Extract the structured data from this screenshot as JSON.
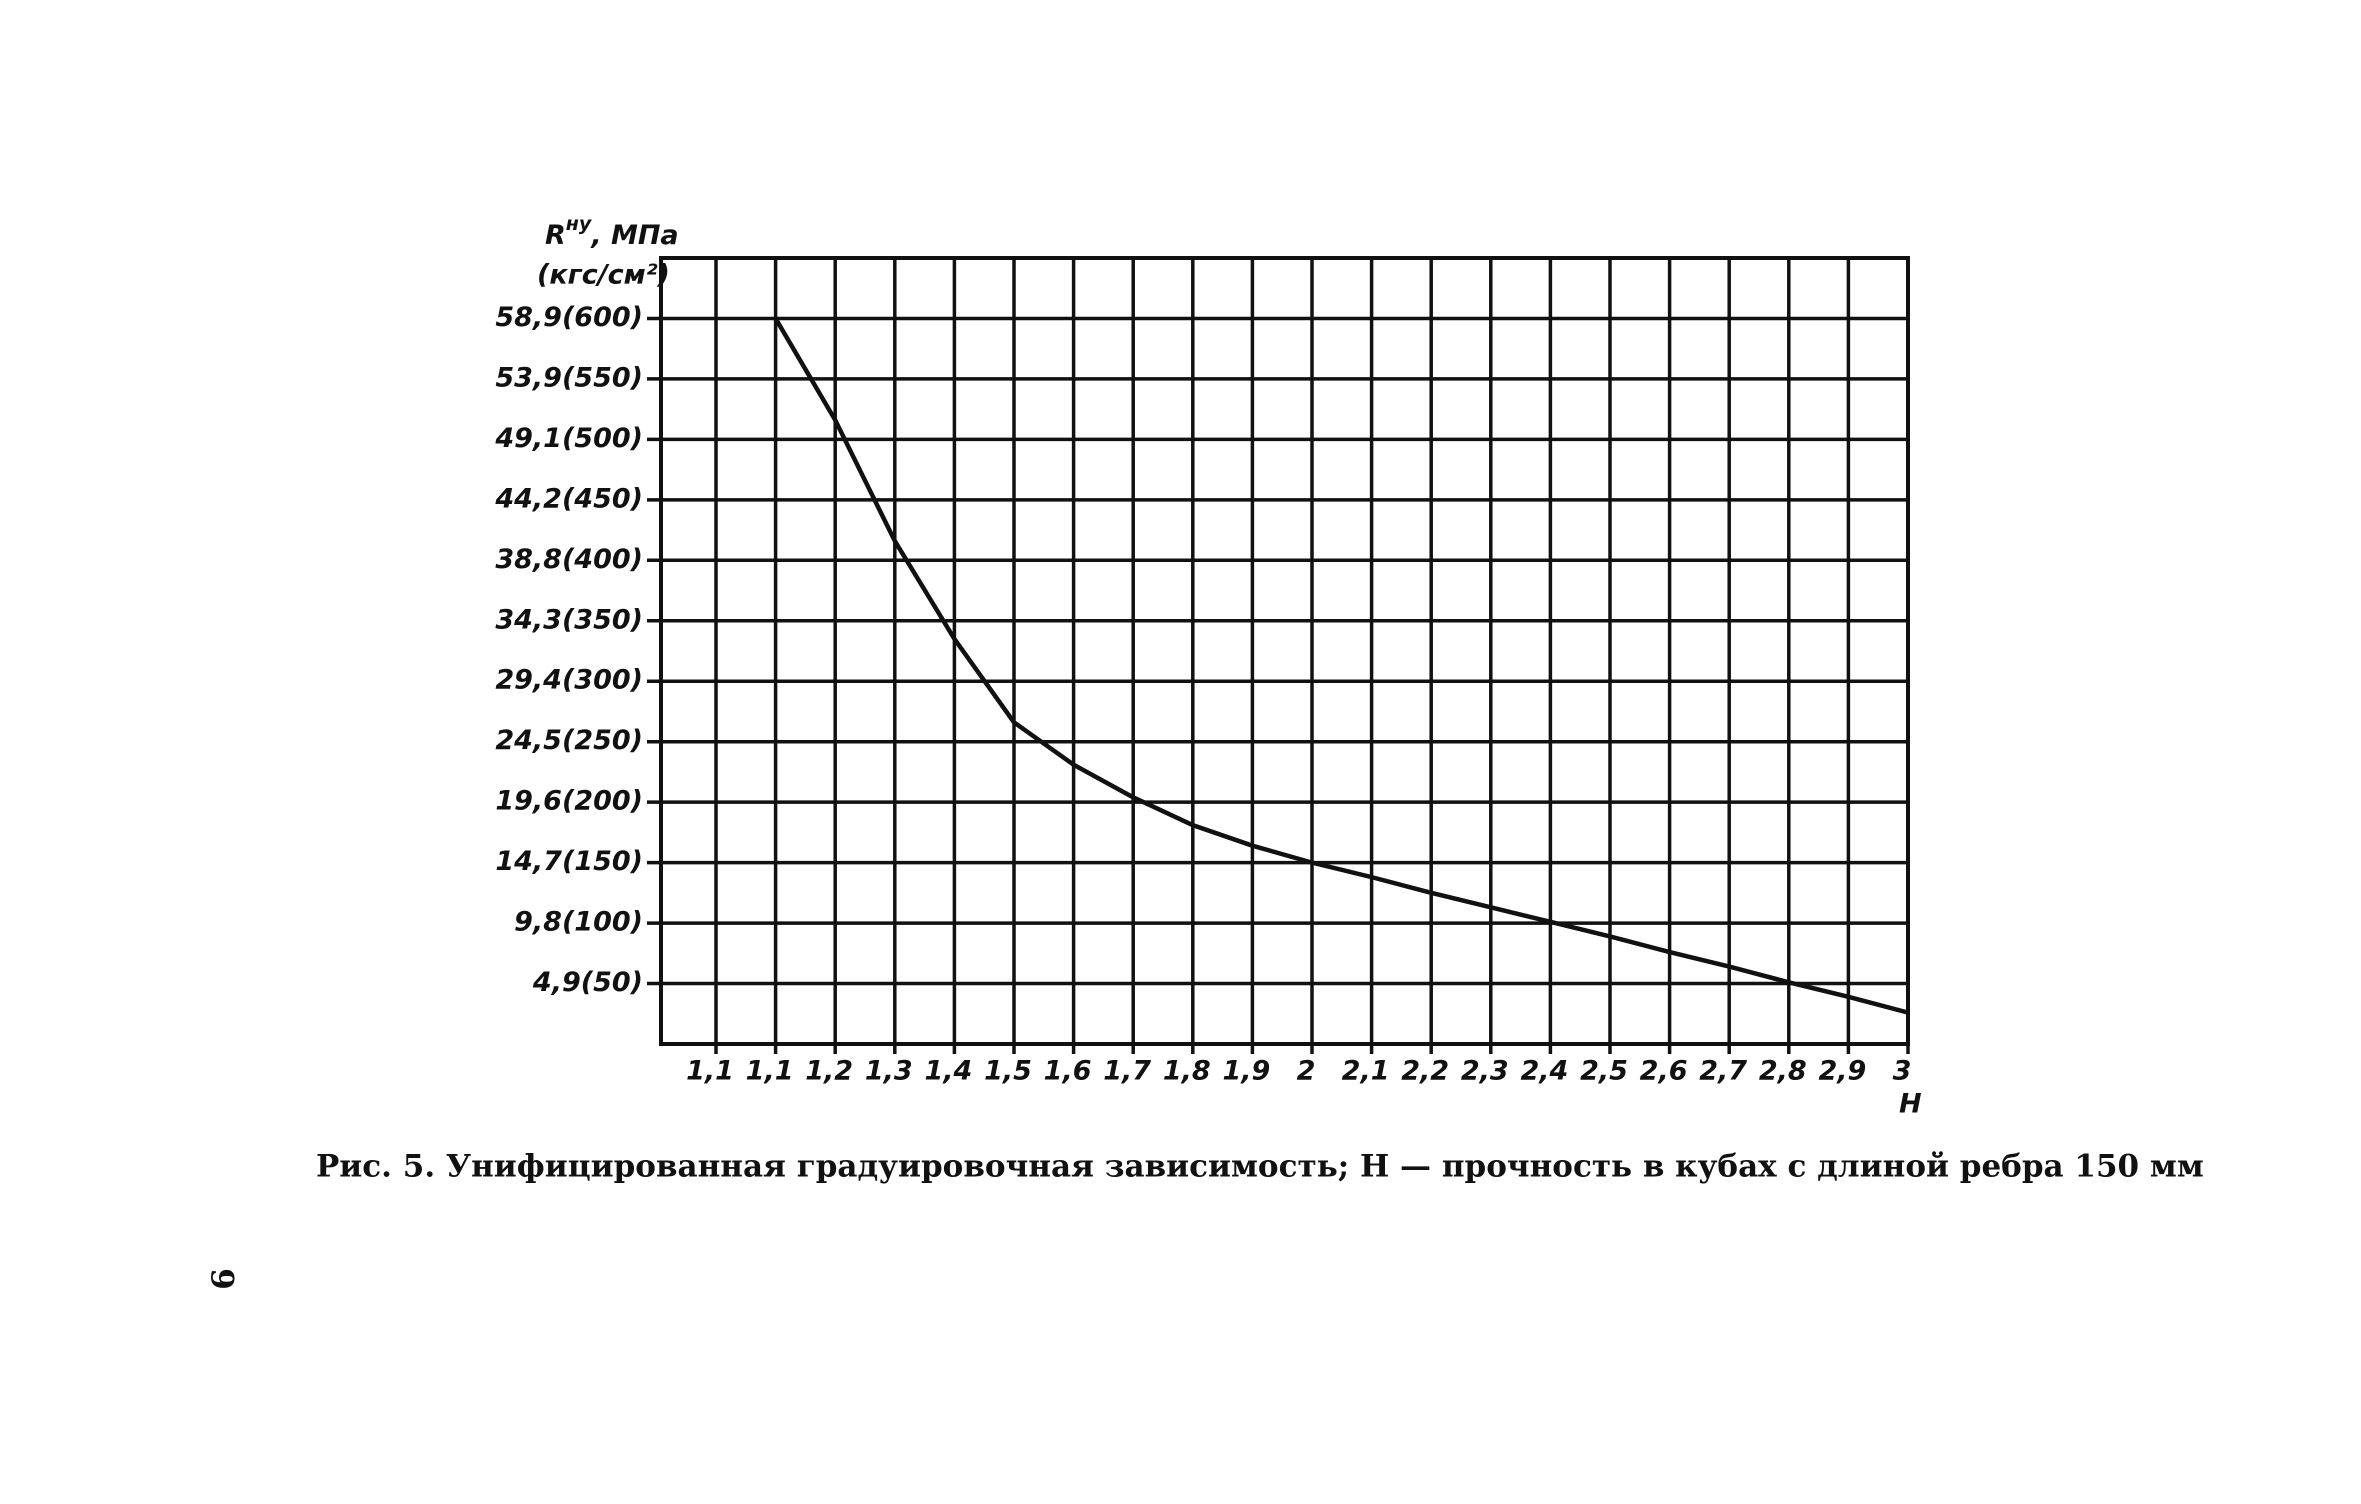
{
  "chart_data": {
    "type": "line",
    "y_label": "R",
    "y_label_sup": "ну",
    "y_label_unit": ", МПа",
    "y_label_unit2": "(кгс/см²)",
    "x_label": "H",
    "categories": [
      "1,1",
      "1,1",
      "1,2",
      "1,3",
      "1,4",
      "1,5",
      "1,6",
      "1,7",
      "1,8",
      "1,9",
      "2",
      "2,1",
      "2,2",
      "2,3",
      "2,4",
      "2,5",
      "2,6",
      "2,7",
      "2,8",
      "2,9",
      "3"
    ],
    "series": [
      {
        "color": "#111111",
        "values": [
          null,
          600,
          516,
          416,
          335,
          266,
          231,
          204,
          181,
          164,
          150,
          138,
          125,
          113,
          101,
          89,
          76,
          64,
          51,
          39,
          26
        ]
      }
    ],
    "ylim": [
      0,
      650
    ],
    "yticks": [
      {
        "value": 600,
        "label": "58,9(600)"
      },
      {
        "value": 550,
        "label": "53,9(550)"
      },
      {
        "value": 500,
        "label": "49,1(500)"
      },
      {
        "value": 450,
        "label": "44,2(450)"
      },
      {
        "value": 400,
        "label": "38,8(400)"
      },
      {
        "value": 350,
        "label": "34,3(350)"
      },
      {
        "value": 300,
        "label": "29,4(300)"
      },
      {
        "value": 250,
        "label": "24,5(250)"
      },
      {
        "value": 200,
        "label": "19,6(200)"
      },
      {
        "value": 150,
        "label": "14,7(150)"
      },
      {
        "value": 100,
        "label": "9,8(100)"
      },
      {
        "value": 50,
        "label": "4,9(50)"
      }
    ],
    "grid": true
  },
  "caption": "Рис. 5. Унифицированная градуировочная зависимость; H — прочность в кубах с длиной ребра 150 мм",
  "page_number": "9"
}
